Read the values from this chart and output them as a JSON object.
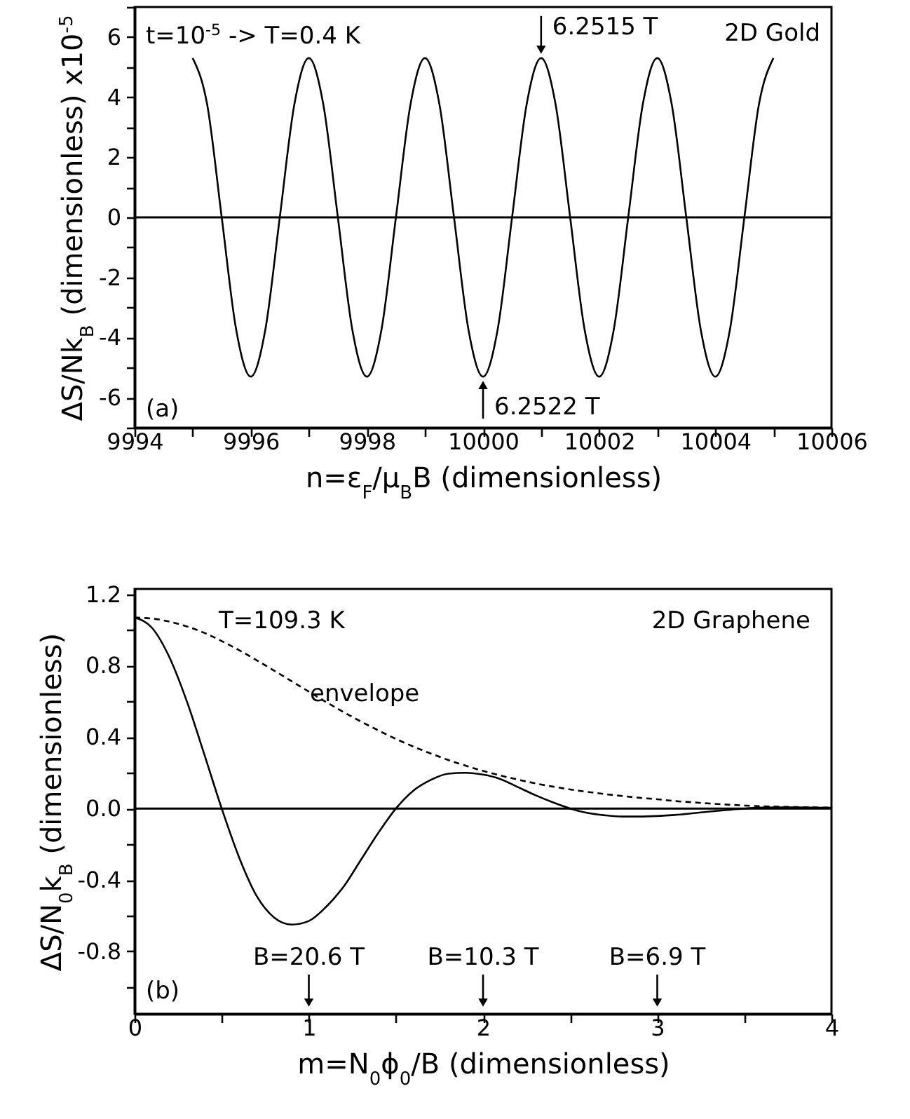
{
  "chart_data": [
    {
      "type": "line",
      "xlabel": "n=ε$_{F}$/μ$_{B}$B (dimensionless)",
      "ylabel": "ΔS/Nk$_{B}$ (dimensionless) x10$^{-5}$",
      "xlim": [
        9994,
        10006
      ],
      "xticks": [
        9994,
        {
          "value": 9995,
          "label": null
        },
        9996,
        {
          "value": 9997,
          "label": null
        },
        9998,
        {
          "value": 9999,
          "label": null
        },
        10000,
        {
          "value": 10001,
          "label": null
        },
        10002,
        {
          "value": 10003,
          "label": null
        },
        10004,
        {
          "value": 10005,
          "label": null
        },
        10006
      ],
      "ylim": [
        -7,
        7
      ],
      "yticks": [
        {
          "value": -7,
          "label": null
        },
        -6,
        {
          "value": -5,
          "label": null
        },
        -4,
        {
          "value": -3,
          "label": null
        },
        -2,
        {
          "value": -1,
          "label": null
        },
        0,
        {
          "value": 1,
          "label": null
        },
        2,
        {
          "value": 3,
          "label": null
        },
        4,
        {
          "value": 5,
          "label": null
        },
        6,
        {
          "value": 7,
          "label": null
        }
      ],
      "x": [
        9995,
        9995.25,
        9995.5,
        9995.75,
        9996,
        9996.25,
        9996.5,
        9996.75,
        9997,
        9997.25,
        9997.5,
        9997.75,
        9998,
        9998.25,
        9998.5,
        9998.75,
        9999,
        9999.25,
        9999.5,
        9999.75,
        10000,
        10000.25,
        10000.5,
        10000.75,
        10001,
        10001.25,
        10001.5,
        10001.75,
        10002,
        10002.25,
        10002.5,
        10002.75,
        10003,
        10003.25,
        10003.5,
        10003.75,
        10004,
        10004.25,
        10004.5,
        10004.75,
        10005
      ],
      "series": [
        {
          "color": "#000000",
          "values": [
            5.3,
            3.75,
            0,
            -3.75,
            -5.3,
            -3.75,
            0,
            3.75,
            5.3,
            3.75,
            0,
            -3.75,
            -5.3,
            -3.75,
            0,
            3.75,
            5.3,
            3.75,
            0,
            -3.75,
            -5.3,
            -3.75,
            0,
            3.75,
            5.3,
            3.75,
            0,
            -3.75,
            -5.3,
            -3.75,
            0,
            3.75,
            5.3,
            3.75,
            0,
            -3.75,
            -5.3,
            -3.75,
            0,
            3.75,
            5.3
          ]
        }
      ],
      "ref_lines": [
        {
          "axis": "y",
          "value": 0,
          "color": "#000000"
        }
      ],
      "annotations": [
        "t=10$^{-5}$ -> T=0.4 K",
        "2D Gold",
        "(a)",
        {
          "text": "6.2515 T",
          "x": 10001,
          "y": 5.3
        },
        {
          "text": "6.2522 T",
          "x": 10000,
          "y": -5.3
        }
      ],
      "grid": false,
      "legend": false,
      "marker": "none",
      "line_style": "solid"
    },
    {
      "type": "line",
      "xlabel": "m=N$_{0}$ϕ$_{0}$/B (dimensionless)",
      "ylabel": "ΔS/N$_{0}$k$_{B}$ (dimensionless)",
      "xlim": [
        0,
        4
      ],
      "xticks": [
        0,
        {
          "value": 0.5,
          "label": null
        },
        1,
        {
          "value": 1.5,
          "label": null
        },
        2,
        {
          "value": 2.5,
          "label": null
        },
        3,
        {
          "value": 3.5,
          "label": null
        },
        4
      ],
      "ylim": [
        -1.15,
        1.23
      ],
      "yticks": [
        {
          "value": -1.0,
          "label": null
        },
        -0.8,
        {
          "value": -0.6,
          "label": null
        },
        -0.4,
        {
          "value": -0.2,
          "label": null
        },
        {
          "value": 0,
          "label": "0.0"
        },
        {
          "value": 0.2,
          "label": null
        },
        0.4,
        {
          "value": 0.6,
          "label": null
        },
        0.8,
        {
          "value": 1.0,
          "label": null
        },
        1.2
      ],
      "x": [
        0,
        0.1,
        0.2,
        0.3,
        0.4,
        0.5,
        0.6,
        0.7,
        0.8,
        0.9,
        1,
        1.1,
        1.2,
        1.3,
        1.4,
        1.5,
        1.6,
        1.7,
        1.8,
        1.9,
        2,
        2.1,
        2.2,
        2.3,
        2.4,
        2.5,
        2.6,
        2.7,
        2.8,
        2.9,
        3,
        3.1,
        3.2,
        3.3,
        3.4,
        3.5,
        3.6,
        3.7,
        3.8,
        3.9,
        4
      ],
      "series": [
        {
          "color": "#000000",
          "line_style": "solid",
          "values": [
            1.07,
            1.012,
            0.847,
            0.6,
            0.304,
            0,
            -0.274,
            -0.489,
            -0.61,
            -0.65,
            -0.63,
            -0.55,
            -0.437,
            -0.286,
            -0.135,
            0,
            0.1,
            0.16,
            0.195,
            0.2,
            0.19,
            0.165,
            0.12,
            0.075,
            0.035,
            0,
            -0.025,
            -0.038,
            -0.045,
            -0.045,
            -0.042,
            -0.036,
            -0.027,
            -0.017,
            -0.008,
            0,
            0.005,
            0.006,
            0.006,
            0.005,
            0.004
          ]
        },
        {
          "name": "envelope",
          "color": "#000000",
          "line_style": "dashed",
          "values": [
            1.07,
            1.064,
            1.047,
            1.02,
            0.984,
            0.938,
            0.887,
            0.831,
            0.773,
            0.714,
            0.655,
            0.596,
            0.54,
            0.487,
            0.437,
            0.39,
            0.347,
            0.308,
            0.272,
            0.24,
            0.211,
            0.185,
            0.162,
            0.141,
            0.123,
            0.107,
            0.093,
            0.081,
            0.07,
            0.06,
            0.052,
            0.042,
            0.035,
            0.028,
            0.022,
            0.017,
            0.013,
            0.01,
            0.008,
            0.006,
            0.005
          ]
        }
      ],
      "ref_lines": [
        {
          "axis": "y",
          "value": 0,
          "color": "#000000"
        }
      ],
      "annotations": [
        "T=109.3 K",
        "2D Graphene",
        "(b)",
        "B=20.6 T",
        "B=10.3 T",
        "B=6.9 T"
      ],
      "grid": false,
      "legend": false,
      "marker": "none"
    }
  ]
}
